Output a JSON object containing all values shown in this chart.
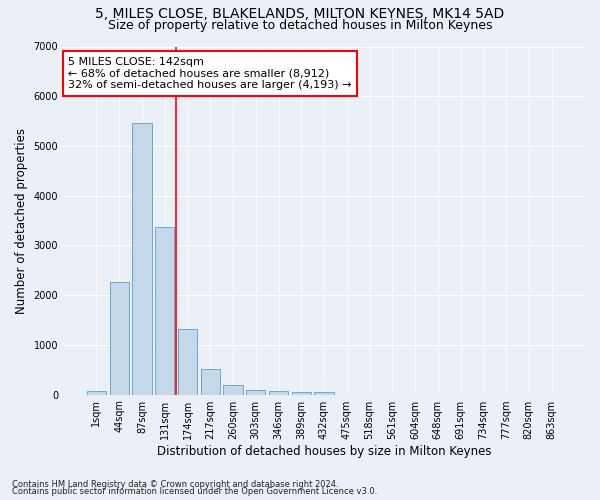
{
  "title": "5, MILES CLOSE, BLAKELANDS, MILTON KEYNES, MK14 5AD",
  "subtitle": "Size of property relative to detached houses in Milton Keynes",
  "xlabel": "Distribution of detached houses by size in Milton Keynes",
  "ylabel": "Number of detached properties",
  "footnote1": "Contains HM Land Registry data © Crown copyright and database right 2024.",
  "footnote2": "Contains public sector information licensed under the Open Government Licence v3.0.",
  "bar_labels": [
    "1sqm",
    "44sqm",
    "87sqm",
    "131sqm",
    "174sqm",
    "217sqm",
    "260sqm",
    "303sqm",
    "346sqm",
    "389sqm",
    "432sqm",
    "475sqm",
    "518sqm",
    "561sqm",
    "604sqm",
    "648sqm",
    "691sqm",
    "734sqm",
    "777sqm",
    "820sqm",
    "863sqm"
  ],
  "bar_values": [
    80,
    2270,
    5460,
    3380,
    1310,
    510,
    185,
    95,
    75,
    60,
    50,
    0,
    0,
    0,
    0,
    0,
    0,
    0,
    0,
    0,
    0
  ],
  "bar_color": "#c5d8ea",
  "bar_edge_color": "#5a9ec9",
  "vline_color": "red",
  "vline_pos": 3.5,
  "annotation_text": "5 MILES CLOSE: 142sqm\n← 68% of detached houses are smaller (8,912)\n32% of semi-detached houses are larger (4,193) →",
  "annotation_box_color": "white",
  "annotation_box_edge": "red",
  "ylim": [
    0,
    7000
  ],
  "yticks": [
    0,
    1000,
    2000,
    3000,
    4000,
    5000,
    6000,
    7000
  ],
  "bg_color": "#eaf0f6",
  "plot_bg_color": "#eaf0f6",
  "grid_color": "white",
  "title_fontsize": 10,
  "subtitle_fontsize": 9,
  "axis_label_fontsize": 8.5,
  "tick_fontsize": 7,
  "annotation_fontsize": 8
}
